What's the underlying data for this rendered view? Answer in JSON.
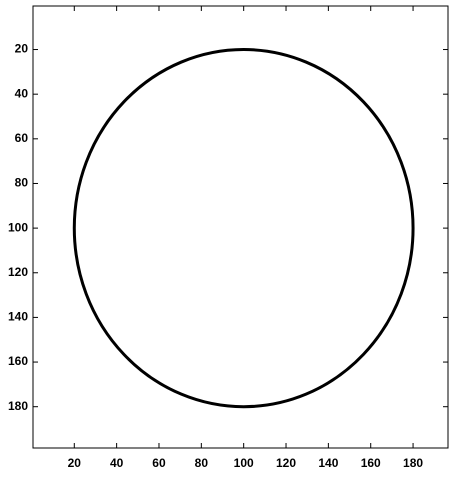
{
  "chart_data": {
    "type": "circle",
    "center": [
      100,
      100
    ],
    "radius": 80,
    "color": "#000000",
    "xlim": [
      0.5,
      196.5
    ],
    "ylim": [
      0.5,
      198.5
    ],
    "y_reversed": true,
    "xticks": [
      20,
      40,
      60,
      80,
      100,
      120,
      140,
      160,
      180
    ],
    "yticks": [
      20,
      40,
      60,
      80,
      100,
      120,
      140,
      160,
      180
    ]
  }
}
